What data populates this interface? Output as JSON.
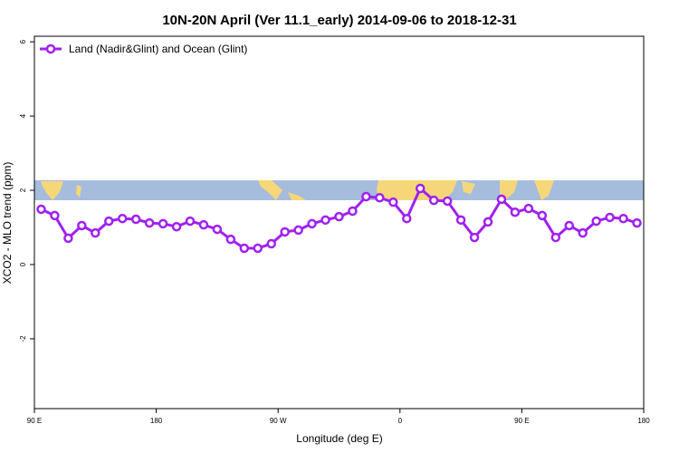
{
  "chart_data": {
    "type": "line",
    "title": "10N-20N April (Ver 11.1_early)   2014-09-06 to 2018-12-31",
    "x_label": "Longitude (deg E)",
    "y_label": "XCO2 - MLO trend (ppm)",
    "x": [
      95,
      105,
      115,
      125,
      135,
      145,
      155,
      165,
      175,
      185,
      195,
      205,
      215,
      225,
      235,
      245,
      255,
      265,
      275,
      285,
      295,
      305,
      315,
      325,
      335,
      345,
      355,
      365,
      375,
      385,
      395,
      405,
      415,
      425,
      435,
      445,
      455,
      465,
      475,
      485,
      495,
      505,
      515,
      525,
      535
    ],
    "series": [
      {
        "name": "Land (Nadir&Glint) and Ocean (Glint)",
        "color": "#a020f0",
        "values": [
          1.49,
          1.32,
          0.71,
          1.05,
          0.85,
          1.17,
          1.24,
          1.22,
          1.12,
          1.1,
          1.02,
          1.17,
          1.07,
          0.95,
          0.68,
          0.44,
          0.44,
          0.56,
          0.88,
          0.93,
          1.1,
          1.2,
          1.29,
          1.44,
          1.83,
          1.8,
          1.68,
          1.24,
          2.05,
          1.73,
          1.71,
          1.2,
          0.73,
          1.15,
          1.76,
          1.41,
          1.51,
          1.32,
          0.73,
          1.05,
          0.85,
          1.17,
          1.27,
          1.24,
          1.12
        ]
      }
    ],
    "xlim": [
      90,
      540
    ],
    "xticks": [
      {
        "value": 90,
        "label": "90 E"
      },
      {
        "value": 180,
        "label": "180"
      },
      {
        "value": 270,
        "label": "90 W"
      },
      {
        "value": 360,
        "label": "0"
      },
      {
        "value": 450,
        "label": "90 E"
      },
      {
        "value": 540,
        "label": "180"
      }
    ],
    "ylim": [
      -3.88,
      6.15
    ],
    "yticks": [
      -2,
      0,
      2,
      4,
      6
    ],
    "legend": "top-left"
  }
}
